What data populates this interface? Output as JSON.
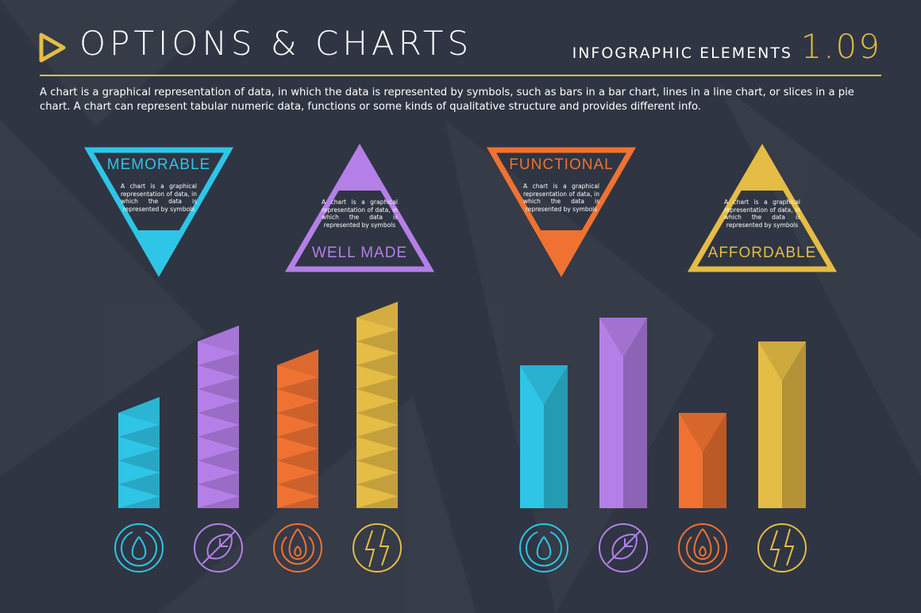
{
  "header": {
    "title": "OPTIONS & CHARTS",
    "subtitle": "INFOGRAPHIC ELEMENTS",
    "number": "1.09"
  },
  "description": "A chart is a graphical representation of data, in which the data is represented by symbols, such as bars in a bar chart, lines in a line chart, or slices in a pie chart. A chart can represent tabular numeric data, functions or some kinds of qualitative structure and provides different info.",
  "palette": [
    "#2ec5e6",
    "#b57fe8",
    "#f07232",
    "#e5bc45"
  ],
  "badges": [
    {
      "title": "MEMORABLE",
      "text": "A chart is a graphical representation of data, in which the data is represented by symbols",
      "direction": "down"
    },
    {
      "title": "WELL MADE",
      "text": "A chart is a graphical representation of data, in which the data is represented by symbols",
      "direction": "up"
    },
    {
      "title": "FUNCTIONAL",
      "text": "A chart is a graphical representation of data, in which the data is represented by symbols",
      "direction": "down"
    },
    {
      "title": "AFFORDABLE",
      "text": "A chart is a graphical representation of data, in which the data is represented by symbols",
      "direction": "up"
    }
  ],
  "bar_groups": [
    {
      "style": "arrows",
      "values": [
        4,
        7,
        6,
        8
      ]
    },
    {
      "style": "split",
      "values": [
        6,
        8,
        4,
        7
      ]
    }
  ]
}
